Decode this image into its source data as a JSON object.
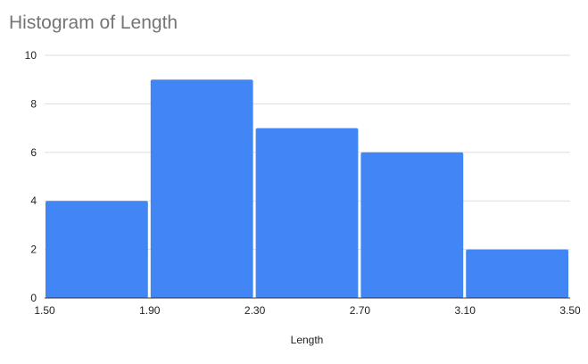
{
  "chart_data": {
    "type": "bar",
    "title": "Histogram of Length",
    "xlabel": "Length",
    "ylabel": "",
    "bins": [
      {
        "start": 1.5,
        "end": 1.9,
        "count": 4
      },
      {
        "start": 1.9,
        "end": 2.3,
        "count": 9
      },
      {
        "start": 2.3,
        "end": 2.7,
        "count": 7
      },
      {
        "start": 2.7,
        "end": 3.1,
        "count": 6
      },
      {
        "start": 3.1,
        "end": 3.5,
        "count": 2
      }
    ],
    "x_ticks": [
      "1.50",
      "1.90",
      "2.30",
      "2.70",
      "3.10",
      "3.50"
    ],
    "y_ticks": [
      "0",
      "2",
      "4",
      "6",
      "8",
      "10"
    ],
    "xlim": [
      1.5,
      3.5
    ],
    "ylim": [
      0,
      10
    ],
    "grid": true,
    "bar_color": "#4285f4",
    "grid_color": "#dddddd",
    "axis_color": "#333333"
  }
}
